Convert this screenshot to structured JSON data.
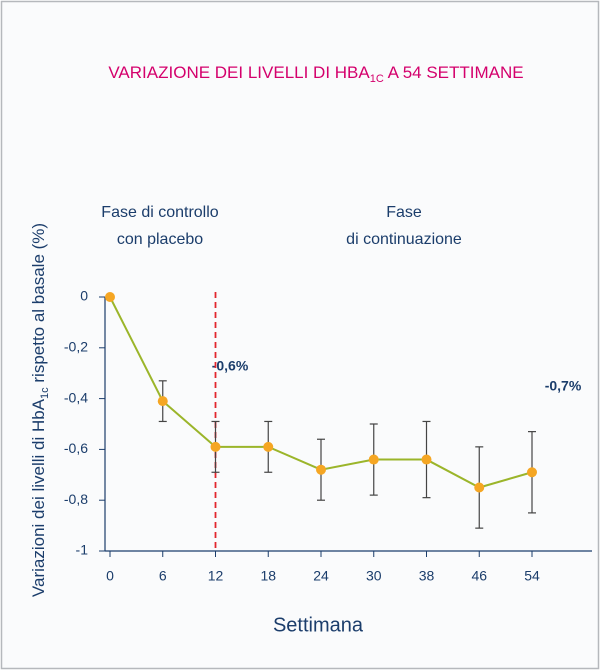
{
  "chart_data": {
    "type": "line",
    "title": {
      "main": "VARIAZIONE DEI LIVELLI DI HBA",
      "sub": "1C",
      "rest": " A 54 SETTIMANE"
    },
    "y_label": {
      "main": "Variazioni dei livelli di HbA",
      "sub": "1c",
      "rest": " rispetto al basale (%)"
    },
    "x_label": "Settimana",
    "categories": [
      "0",
      "6",
      "12",
      "18",
      "24",
      "30",
      "38",
      "46",
      "54"
    ],
    "values": [
      0,
      -0.41,
      -0.59,
      -0.59,
      -0.68,
      -0.64,
      -0.64,
      -0.75,
      -0.69
    ],
    "errors": [
      null,
      0.08,
      0.1,
      0.1,
      0.12,
      0.14,
      0.15,
      0.16,
      0.16
    ],
    "line_color": "#9bb52a",
    "marker_color": "#f5a623",
    "ylim": [
      -1,
      0
    ],
    "yticks": [
      {
        "value": -1,
        "label": "-1"
      },
      {
        "value": -0.8,
        "label": "-0,8"
      },
      {
        "value": -0.6,
        "label": "-0,6"
      },
      {
        "value": -0.4,
        "label": "-0,4"
      },
      {
        "value": -0.2,
        "label": "-0,2"
      },
      0
    ],
    "divider": "12",
    "phase_1": [
      "Fase di controllo",
      "con placebo"
    ],
    "phase_2": [
      "Fase",
      "di continuazione"
    ],
    "note_1": "-0,6%",
    "note_2": "-0,7%"
  }
}
